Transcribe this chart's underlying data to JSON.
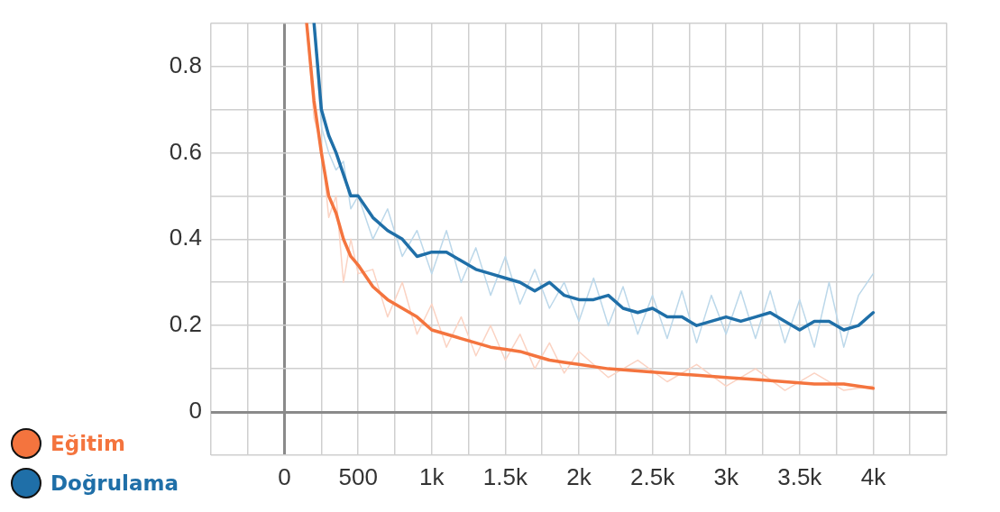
{
  "chart_data": {
    "type": "line",
    "xlim": [
      -500,
      4500
    ],
    "ylim": [
      -0.1,
      0.9
    ],
    "xticks": [
      {
        "value": -500,
        "label": null
      },
      {
        "value": -250,
        "label": null
      },
      0,
      {
        "value": 250,
        "label": null
      },
      500,
      {
        "value": 750,
        "label": null
      },
      {
        "value": 1000,
        "label": "1k"
      },
      {
        "value": 1250,
        "label": null
      },
      {
        "value": 1500,
        "label": "1.5k"
      },
      {
        "value": 1750,
        "label": null
      },
      {
        "value": 2000,
        "label": "2k"
      },
      {
        "value": 2250,
        "label": null
      },
      {
        "value": 2500,
        "label": "2.5k"
      },
      {
        "value": 2750,
        "label": null
      },
      {
        "value": 3000,
        "label": "3k"
      },
      {
        "value": 3250,
        "label": null
      },
      {
        "value": 3500,
        "label": "3.5k"
      },
      {
        "value": 3750,
        "label": null
      },
      {
        "value": 4000,
        "label": "4k"
      },
      {
        "value": 4250,
        "label": null
      },
      {
        "value": 4500,
        "label": null
      }
    ],
    "yticks": [
      {
        "value": -0.1,
        "label": null
      },
      0,
      {
        "value": 0.1,
        "label": null
      },
      0.2,
      {
        "value": 0.3,
        "label": null
      },
      0.4,
      {
        "value": 0.5,
        "label": null
      },
      0.6,
      {
        "value": 0.7,
        "label": null
      },
      0.8,
      {
        "value": 0.9,
        "label": null
      }
    ],
    "grid": true,
    "legend": "bottom left",
    "marker": "none",
    "line_style": "solid",
    "series": [
      {
        "color": "#fbd3c3",
        "x": [
          150,
          200,
          250,
          300,
          350,
          400,
          450,
          500,
          600,
          700,
          800,
          900,
          1000,
          1100,
          1200,
          1300,
          1400,
          1500,
          1600,
          1700,
          1800,
          1900,
          2000,
          2200,
          2400,
          2600,
          2800,
          3000,
          3200,
          3400,
          3600,
          3800,
          4000
        ],
        "values": [
          0.9,
          0.68,
          0.62,
          0.45,
          0.5,
          0.3,
          0.4,
          0.32,
          0.33,
          0.22,
          0.3,
          0.18,
          0.25,
          0.15,
          0.22,
          0.13,
          0.2,
          0.12,
          0.18,
          0.1,
          0.16,
          0.09,
          0.14,
          0.08,
          0.12,
          0.07,
          0.11,
          0.06,
          0.1,
          0.05,
          0.09,
          0.05,
          0.06
        ]
      },
      {
        "color": "#bcd8ea",
        "x": [
          200,
          250,
          300,
          350,
          400,
          450,
          500,
          600,
          700,
          800,
          900,
          1000,
          1100,
          1200,
          1300,
          1400,
          1500,
          1600,
          1700,
          1800,
          1900,
          2000,
          2100,
          2200,
          2300,
          2400,
          2500,
          2600,
          2700,
          2800,
          2900,
          3000,
          3100,
          3200,
          3300,
          3400,
          3500,
          3600,
          3700,
          3800,
          3900,
          4000
        ],
        "values": [
          0.9,
          0.66,
          0.6,
          0.56,
          0.58,
          0.47,
          0.5,
          0.4,
          0.47,
          0.36,
          0.42,
          0.32,
          0.42,
          0.3,
          0.38,
          0.27,
          0.36,
          0.25,
          0.33,
          0.24,
          0.3,
          0.21,
          0.31,
          0.2,
          0.29,
          0.18,
          0.27,
          0.17,
          0.28,
          0.16,
          0.27,
          0.18,
          0.28,
          0.17,
          0.28,
          0.16,
          0.26,
          0.15,
          0.3,
          0.15,
          0.27,
          0.32
        ]
      },
      {
        "name": "Eğitim",
        "color": "#f4743e",
        "x": [
          150,
          200,
          250,
          300,
          350,
          400,
          450,
          500,
          600,
          700,
          800,
          900,
          1000,
          1100,
          1200,
          1300,
          1400,
          1500,
          1600,
          1700,
          1800,
          1900,
          2000,
          2200,
          2400,
          2600,
          2800,
          3000,
          3200,
          3400,
          3600,
          3800,
          4000
        ],
        "values": [
          0.9,
          0.72,
          0.6,
          0.5,
          0.46,
          0.4,
          0.36,
          0.34,
          0.29,
          0.26,
          0.24,
          0.22,
          0.19,
          0.18,
          0.17,
          0.16,
          0.15,
          0.145,
          0.14,
          0.13,
          0.12,
          0.115,
          0.11,
          0.1,
          0.095,
          0.09,
          0.085,
          0.08,
          0.075,
          0.07,
          0.065,
          0.065,
          0.055
        ]
      },
      {
        "name": "Doğrulama",
        "color": "#1f6fa8",
        "x": [
          200,
          250,
          300,
          350,
          400,
          450,
          500,
          600,
          700,
          800,
          900,
          1000,
          1100,
          1200,
          1300,
          1400,
          1500,
          1600,
          1700,
          1800,
          1900,
          2000,
          2100,
          2200,
          2300,
          2400,
          2500,
          2600,
          2700,
          2800,
          2900,
          3000,
          3100,
          3200,
          3300,
          3400,
          3500,
          3600,
          3700,
          3800,
          3900,
          4000
        ],
        "values": [
          0.9,
          0.7,
          0.64,
          0.6,
          0.55,
          0.5,
          0.5,
          0.45,
          0.42,
          0.4,
          0.36,
          0.37,
          0.37,
          0.35,
          0.33,
          0.32,
          0.31,
          0.3,
          0.28,
          0.3,
          0.27,
          0.26,
          0.26,
          0.27,
          0.24,
          0.23,
          0.24,
          0.22,
          0.22,
          0.2,
          0.21,
          0.22,
          0.21,
          0.22,
          0.23,
          0.21,
          0.19,
          0.21,
          0.21,
          0.19,
          0.2,
          0.23
        ]
      }
    ]
  }
}
